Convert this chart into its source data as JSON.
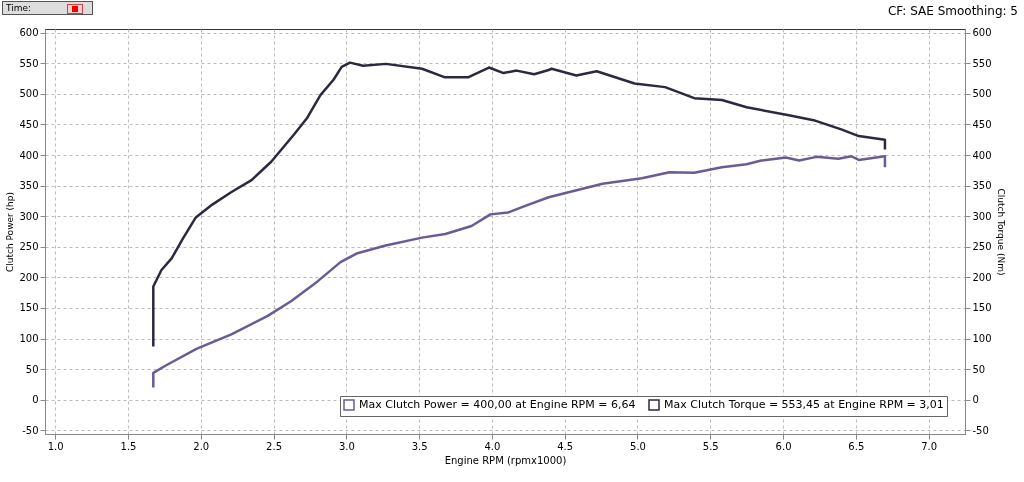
{
  "chart_data": {
    "type": "line",
    "xlabel": "Engine RPM (rpmx1000)",
    "ylabel": "Clutch Power (hp)",
    "y2label": "Clutch Torque (Nm)",
    "annotations": [
      "Time:",
      "CF: SAE Smoothing: 5"
    ],
    "xlim": [
      0.93,
      7.25
    ],
    "xticks": [
      {
        "value": 1,
        "label": "1.0"
      },
      {
        "value": 1.5,
        "label": "1.5"
      },
      {
        "value": 2,
        "label": "2.0"
      },
      {
        "value": 2.5,
        "label": "2.5"
      },
      {
        "value": 3,
        "label": "3.0"
      },
      {
        "value": 3.5,
        "label": "3.5"
      },
      {
        "value": 4,
        "label": "4.0"
      },
      {
        "value": 4.5,
        "label": "4.5"
      },
      {
        "value": 5,
        "label": "5.0"
      },
      {
        "value": 5.5,
        "label": "5.5"
      },
      {
        "value": 6,
        "label": "6.0"
      },
      {
        "value": 6.5,
        "label": "6.5"
      },
      {
        "value": 7,
        "label": "7.0"
      }
    ],
    "ylim": [
      -56,
      606
    ],
    "yticks": [
      -50,
      0,
      50,
      100,
      150,
      200,
      250,
      300,
      350,
      400,
      450,
      500,
      550,
      600
    ],
    "y2lim": [
      -56,
      606
    ],
    "y2ticks": [
      -50,
      0,
      50,
      100,
      150,
      200,
      250,
      300,
      350,
      400,
      450,
      500,
      550,
      600
    ],
    "grid": true,
    "legend": "bottom right",
    "marker": "none",
    "line_style": "solid",
    "series": [
      {
        "name": "Max Clutch Power = 400,00 at Engine RPM = 6,64",
        "color": "#6b5b95",
        "x": [
          1.674,
          1.674,
          1.76,
          1.97,
          2.21,
          2.46,
          2.62,
          2.8,
          2.96,
          3.07,
          3.27,
          3.52,
          3.68,
          3.86,
          3.99,
          4.11,
          4.22,
          4.39,
          4.76,
          5.03,
          5.22,
          5.39,
          5.58,
          5.75,
          5.85,
          6.02,
          6.11,
          6.23,
          6.38,
          6.47,
          6.52,
          6.7,
          6.7
        ],
        "values": [
          20,
          44,
          56,
          83,
          107,
          137,
          161,
          193,
          225,
          239,
          252,
          265,
          271,
          284,
          303,
          306,
          316,
          331,
          353,
          362,
          372,
          371,
          380,
          385,
          391,
          396,
          391,
          397,
          394,
          398,
          392,
          398,
          380
        ]
      },
      {
        "name": "Max Clutch Torque = 553,45 at Engine RPM = 3,01",
        "color": "#2b2840",
        "axis": "y2",
        "x": [
          1.674,
          1.674,
          1.73,
          1.8,
          1.876,
          1.966,
          2.079,
          2.214,
          2.349,
          2.484,
          2.642,
          2.732,
          2.822,
          2.912,
          2.968,
          3.025,
          3.115,
          3.272,
          3.52,
          3.678,
          3.836,
          3.98,
          4.08,
          4.17,
          4.29,
          4.39,
          4.41,
          4.58,
          4.72,
          4.98,
          5.19,
          5.39,
          5.58,
          5.75,
          6.04,
          6.21,
          6.4,
          6.52,
          6.7,
          6.7
        ],
        "values": [
          87,
          185,
          212,
          231,
          263,
          298,
          319,
          340,
          359,
          389,
          434,
          461,
          498,
          523,
          544,
          551,
          546,
          549,
          541,
          527,
          527,
          543,
          534,
          538,
          532,
          539,
          541,
          530,
          537,
          517,
          511,
          493,
          490,
          478,
          465,
          457,
          442,
          431,
          425,
          409
        ]
      }
    ]
  }
}
